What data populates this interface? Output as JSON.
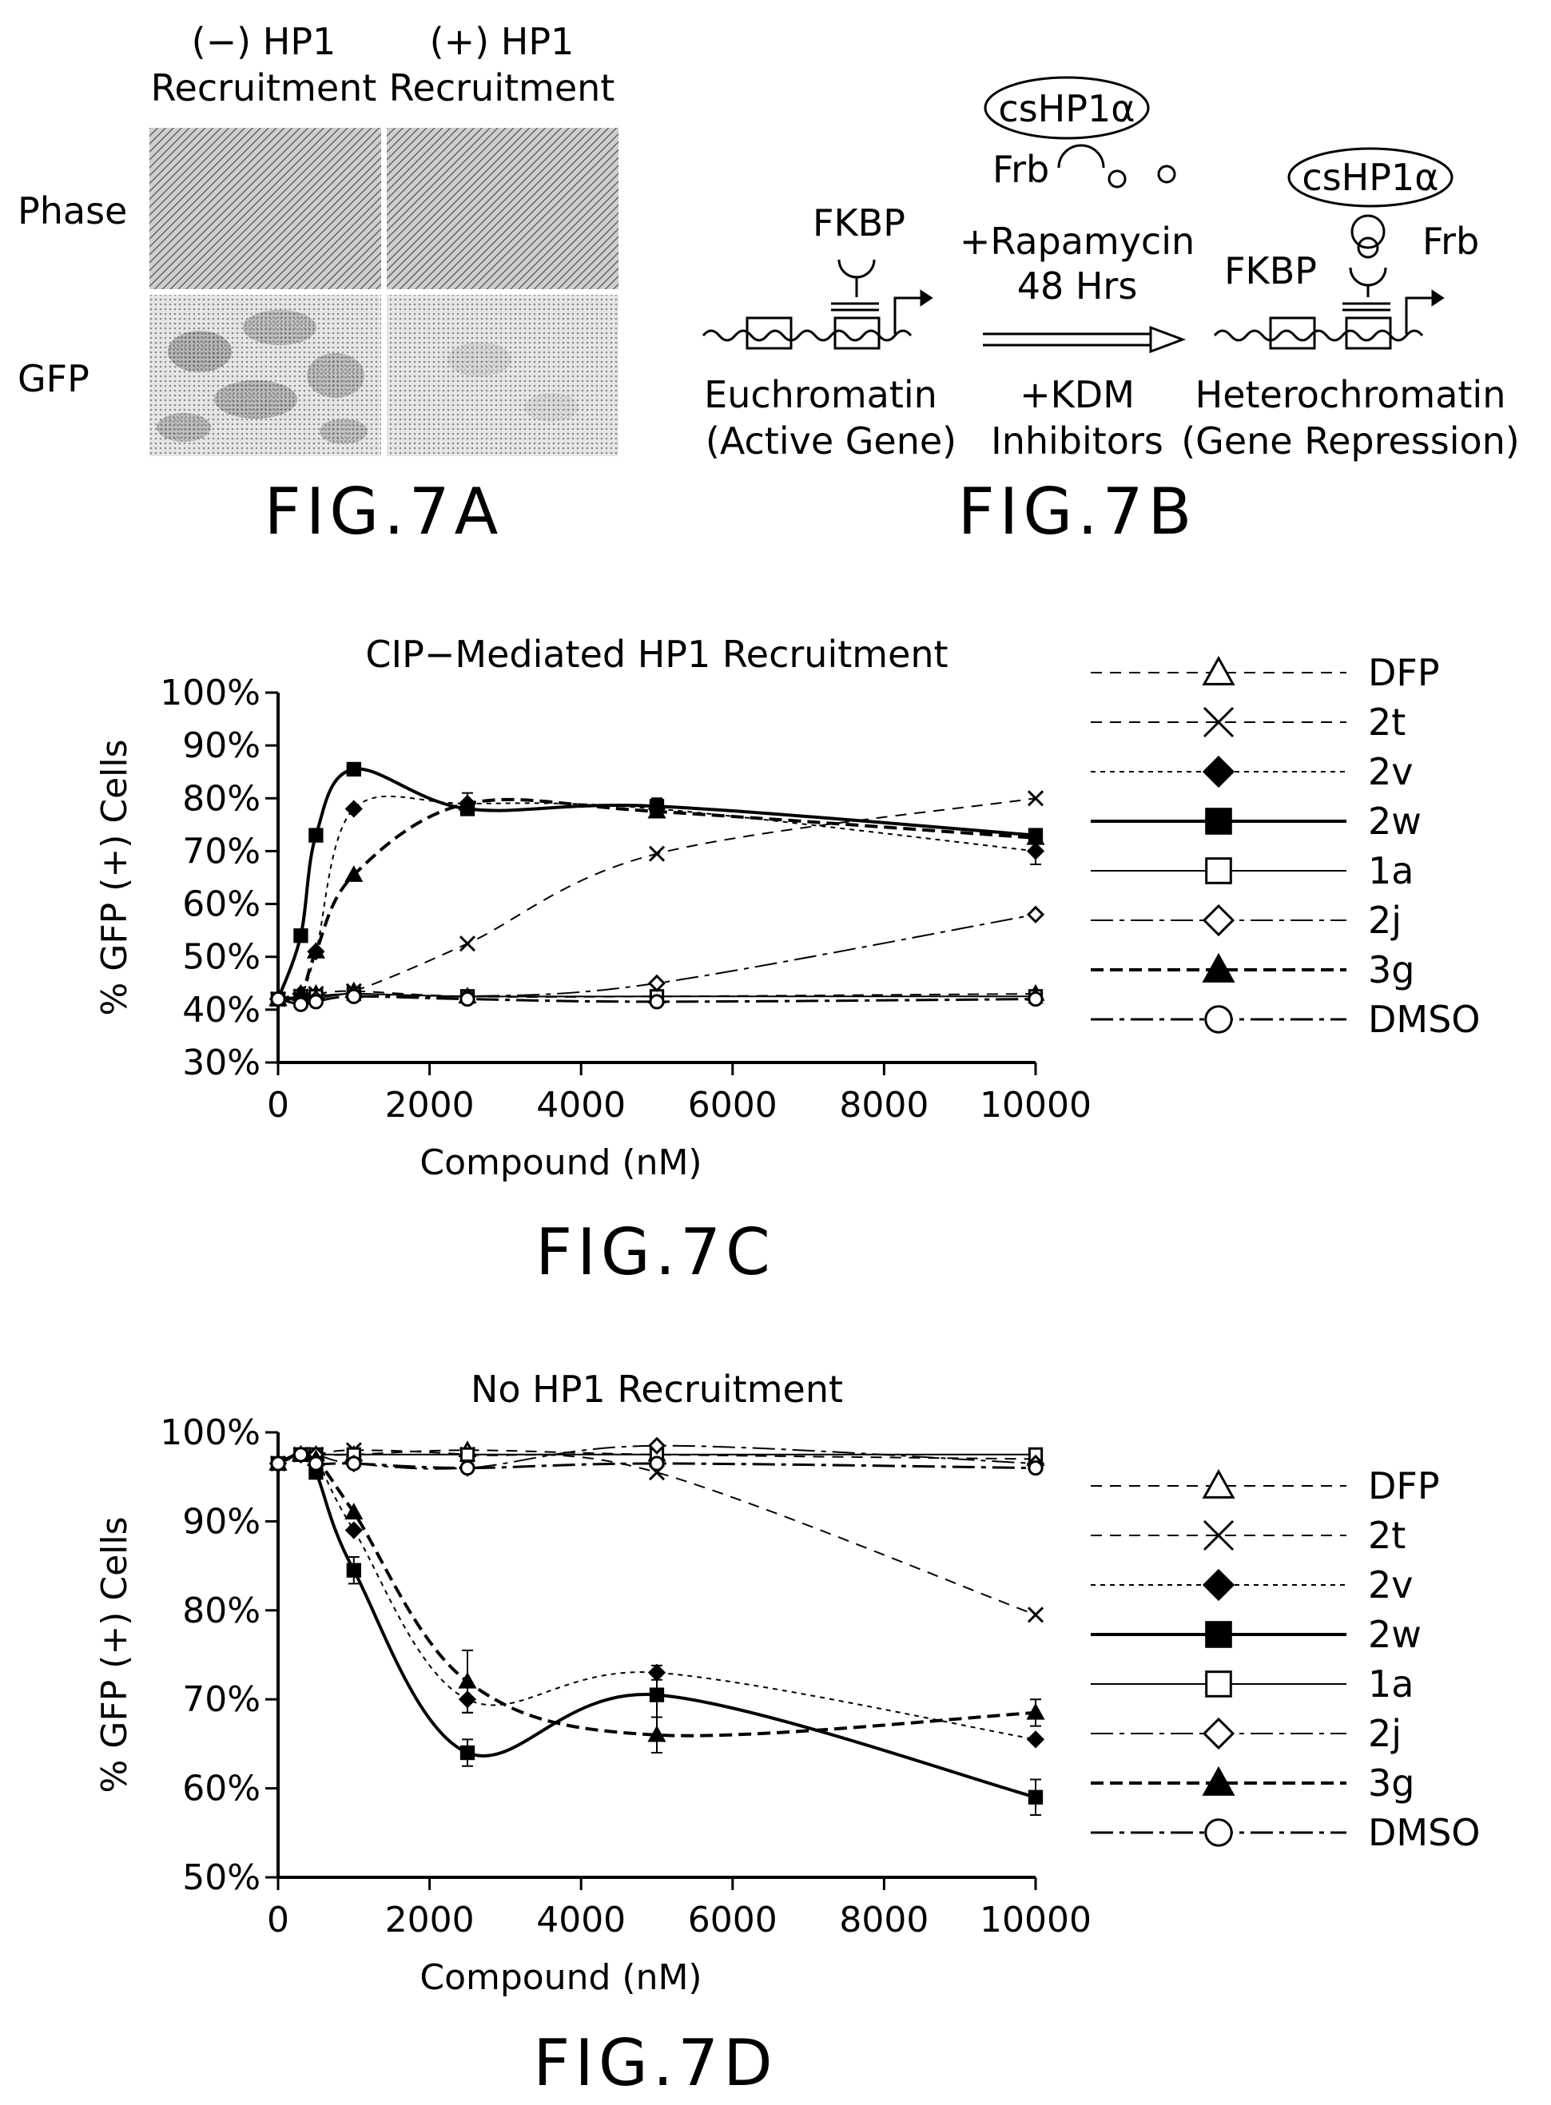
{
  "fig7a": {
    "col1_line1": "(−) HP1",
    "col1_line2": "Recruitment",
    "col2_line1": "(+) HP1",
    "col2_line2": "Recruitment",
    "row1": "Phase",
    "row2": "GFP",
    "label": "FIG.7A"
  },
  "fig7b": {
    "cshp1": "csHP1α",
    "frb": "Frb",
    "fkbp": "FKBP",
    "rapamycin": "+Rapamycin",
    "hours": "48 Hrs",
    "kdm1": "+KDM",
    "kdm2": "Inhibitors",
    "eu1": "Euchromatin",
    "eu2": "(Active Gene)",
    "het1": "Heterochromatin",
    "het2": "(Gene Repression)",
    "label": "FIG.7B"
  },
  "legend": [
    {
      "name": "DFP",
      "marker": "triangle-open",
      "dash": "14,10",
      "width": 2
    },
    {
      "name": "2t",
      "marker": "x",
      "dash": "14,10",
      "width": 2
    },
    {
      "name": "2v",
      "marker": "diamond-filled",
      "dash": "6,6",
      "width": 2
    },
    {
      "name": "2w",
      "marker": "square-filled",
      "dash": "",
      "width": 4
    },
    {
      "name": "1a",
      "marker": "square-open",
      "dash": "",
      "width": 2
    },
    {
      "name": "2j",
      "marker": "diamond-open",
      "dash": "28,8,6,8",
      "width": 2
    },
    {
      "name": "3g",
      "marker": "triangle-filled",
      "dash": "16,8",
      "width": 4
    },
    {
      "name": "DMSO",
      "marker": "circle-open",
      "dash": "28,8,6,8",
      "width": 3
    }
  ],
  "chart_data": [
    {
      "type": "line",
      "title": "CIP−Mediated HP1 Recruitment",
      "xlabel": "Compound (nM)",
      "ylabel": "% GFP (+) Cells",
      "figure_label": "FIG.7C",
      "xlim": [
        0,
        10000
      ],
      "ylim": [
        30,
        100
      ],
      "xticks": [
        0,
        2000,
        4000,
        6000,
        8000,
        10000
      ],
      "yticks": [
        30,
        40,
        50,
        60,
        70,
        80,
        90,
        100
      ],
      "ytick_labels": [
        "30%",
        "40%",
        "50%",
        "60%",
        "70%",
        "80%",
        "90%",
        "100%"
      ],
      "x": [
        0,
        300,
        500,
        1000,
        2500,
        5000,
        10000
      ],
      "series": [
        {
          "name": "DFP",
          "values": [
            42,
            43,
            43,
            43.5,
            42.5,
            42.5,
            43
          ]
        },
        {
          "name": "2t",
          "values": [
            42,
            42.5,
            43,
            43.5,
            52.5,
            69.5,
            80
          ]
        },
        {
          "name": "2v",
          "values": [
            42,
            43,
            51,
            78,
            79,
            78,
            70
          ],
          "errors": [
            0,
            0,
            0,
            0,
            0,
            0,
            2.5
          ]
        },
        {
          "name": "2w",
          "values": [
            42,
            54,
            73,
            85.5,
            78,
            78.5,
            73
          ],
          "errors": [
            0,
            0,
            0,
            0,
            1,
            1.5,
            0
          ]
        },
        {
          "name": "1a",
          "values": [
            42,
            42.5,
            42.5,
            43,
            42.5,
            42.5,
            42.5
          ]
        },
        {
          "name": "2j",
          "values": [
            42,
            42,
            42,
            43,
            42.5,
            45,
            58
          ]
        },
        {
          "name": "3g",
          "values": [
            42,
            43,
            51,
            65.5,
            79,
            77.5,
            72.5
          ],
          "errors": [
            0,
            0,
            0,
            0,
            2,
            0,
            0
          ]
        },
        {
          "name": "DMSO",
          "values": [
            42,
            41,
            41.5,
            42.5,
            42,
            41.5,
            42
          ]
        }
      ]
    },
    {
      "type": "line",
      "title": "No HP1 Recruitment",
      "xlabel": "Compound (nM)",
      "ylabel": "% GFP (+) Cells",
      "figure_label": "FIG.7D",
      "xlim": [
        0,
        10000
      ],
      "ylim": [
        50,
        100
      ],
      "xticks": [
        0,
        2000,
        4000,
        6000,
        8000,
        10000
      ],
      "yticks": [
        50,
        60,
        70,
        80,
        90,
        100
      ],
      "ytick_labels": [
        "50%",
        "60%",
        "70%",
        "80%",
        "90%",
        "100%"
      ],
      "x": [
        0,
        300,
        500,
        1000,
        2500,
        5000,
        10000
      ],
      "series": [
        {
          "name": "DFP",
          "values": [
            96.5,
            97.5,
            97.5,
            97.5,
            98,
            97.5,
            97
          ]
        },
        {
          "name": "2t",
          "values": [
            96.5,
            97.5,
            97.5,
            98,
            97.5,
            95.5,
            79.5
          ]
        },
        {
          "name": "2v",
          "values": [
            96.5,
            97.5,
            97,
            89,
            70,
            73,
            65.5
          ],
          "errors": [
            0,
            0,
            0,
            0,
            1.5,
            0.8,
            0
          ]
        },
        {
          "name": "2w",
          "values": [
            96.5,
            97.5,
            95.5,
            84.5,
            64,
            70.5,
            59
          ],
          "errors": [
            0,
            0,
            0,
            1.5,
            1.5,
            2.5,
            2
          ]
        },
        {
          "name": "1a",
          "values": [
            96.5,
            97.5,
            97.5,
            97.5,
            97.5,
            97.5,
            97.5
          ]
        },
        {
          "name": "2j",
          "values": [
            96.5,
            97.5,
            97.5,
            96.5,
            96,
            98.5,
            96.5
          ]
        },
        {
          "name": "3g",
          "values": [
            96.5,
            97.5,
            97,
            91,
            72,
            66,
            68.5
          ],
          "errors": [
            0,
            0,
            0,
            0,
            3.5,
            2,
            1.5
          ]
        },
        {
          "name": "DMSO",
          "values": [
            96.5,
            97.5,
            96.5,
            96.5,
            96,
            96.5,
            96
          ]
        }
      ]
    }
  ]
}
